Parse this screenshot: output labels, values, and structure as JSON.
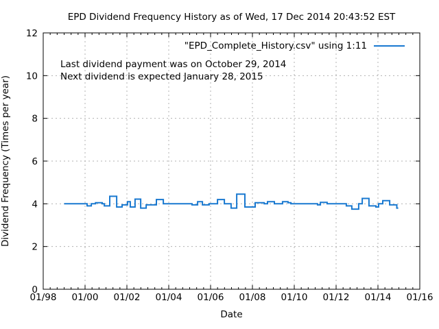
{
  "window": {
    "background": "#ffffff"
  },
  "title": "EPD Dividend Frequency History as of Wed, 17 Dec 2014 20:43:52 EST",
  "legend": {
    "label": "\"EPD_Complete_History.csv\" using 1:11",
    "line_color": "#1878d0"
  },
  "annotations": {
    "line1": "Last dividend payment was on October 29, 2014",
    "line2": "Next dividend is expected January 28, 2015"
  },
  "colors": {
    "background": "#ffffff",
    "text": "#000000",
    "border": "#000000",
    "grid": "#b0b0b0",
    "series": "#1878d0"
  },
  "chart_data": {
    "type": "line",
    "title": "EPD Dividend Frequency History as of Wed, 17 Dec 2014 20:43:52 EST",
    "xlabel": "Date",
    "ylabel": "Dividend Frequency (Times per year)",
    "xlim": [
      1998,
      2016
    ],
    "ylim": [
      0,
      12
    ],
    "grid": true,
    "legend_position": "top-right-inside",
    "x_ticks": [
      {
        "v": 1998,
        "label": "01/98"
      },
      {
        "v": 2000,
        "label": "01/00"
      },
      {
        "v": 2002,
        "label": "01/02"
      },
      {
        "v": 2004,
        "label": "01/04"
      },
      {
        "v": 2006,
        "label": "01/06"
      },
      {
        "v": 2008,
        "label": "01/08"
      },
      {
        "v": 2010,
        "label": "01/10"
      },
      {
        "v": 2012,
        "label": "01/12"
      },
      {
        "v": 2014,
        "label": "01/14"
      },
      {
        "v": 2016,
        "label": "01/16"
      }
    ],
    "x_minor_per_major": 6,
    "y_ticks": [
      {
        "v": 0,
        "label": "0"
      },
      {
        "v": 2,
        "label": "2"
      },
      {
        "v": 4,
        "label": "4"
      },
      {
        "v": 6,
        "label": "6"
      },
      {
        "v": 8,
        "label": "8"
      },
      {
        "v": 10,
        "label": "10"
      },
      {
        "v": 12,
        "label": "12"
      }
    ],
    "series": [
      {
        "name": "\"EPD_Complete_History.csv\" using 1:11",
        "color": "#1878d0",
        "steps": [
          [
            1999.0,
            2000.1,
            4.0
          ],
          [
            2000.1,
            2000.3,
            3.9
          ],
          [
            2000.3,
            2000.5,
            4.0
          ],
          [
            2000.5,
            2000.82,
            4.05
          ],
          [
            2000.82,
            2000.92,
            4.0
          ],
          [
            2000.92,
            2001.18,
            3.9
          ],
          [
            2001.18,
            2001.51,
            4.35
          ],
          [
            2001.51,
            2001.77,
            3.85
          ],
          [
            2001.77,
            2002.03,
            3.95
          ],
          [
            2002.03,
            2002.16,
            4.1
          ],
          [
            2002.16,
            2002.39,
            3.85
          ],
          [
            2002.39,
            2002.66,
            4.22
          ],
          [
            2002.66,
            2002.92,
            3.8
          ],
          [
            2002.92,
            2003.41,
            3.95
          ],
          [
            2003.41,
            2003.74,
            4.2
          ],
          [
            2003.74,
            2005.11,
            4.0
          ],
          [
            2005.11,
            2005.38,
            3.95
          ],
          [
            2005.38,
            2005.61,
            4.1
          ],
          [
            2005.61,
            2005.93,
            3.95
          ],
          [
            2005.93,
            2006.33,
            4.0
          ],
          [
            2006.33,
            2006.66,
            4.2
          ],
          [
            2006.66,
            2006.98,
            4.0
          ],
          [
            2006.98,
            2007.25,
            3.8
          ],
          [
            2007.25,
            2007.64,
            4.45
          ],
          [
            2007.64,
            2008.13,
            3.85
          ],
          [
            2008.13,
            2008.56,
            4.05
          ],
          [
            2008.56,
            2008.72,
            4.0
          ],
          [
            2008.72,
            2009.05,
            4.1
          ],
          [
            2009.05,
            2009.44,
            4.0
          ],
          [
            2009.44,
            2009.7,
            4.1
          ],
          [
            2009.7,
            2009.84,
            4.05
          ],
          [
            2009.84,
            2011.11,
            4.0
          ],
          [
            2011.11,
            2011.25,
            3.95
          ],
          [
            2011.25,
            2011.57,
            4.07
          ],
          [
            2011.57,
            2012.49,
            4.0
          ],
          [
            2012.49,
            2012.75,
            3.9
          ],
          [
            2012.75,
            2013.08,
            3.75
          ],
          [
            2013.08,
            2013.25,
            4.0
          ],
          [
            2013.25,
            2013.57,
            4.25
          ],
          [
            2013.57,
            2013.9,
            3.9
          ],
          [
            2013.9,
            2014.03,
            3.85
          ],
          [
            2014.03,
            2014.23,
            4.0
          ],
          [
            2014.23,
            2014.56,
            4.15
          ],
          [
            2014.56,
            2014.9,
            3.95
          ],
          [
            2014.9,
            2014.97,
            3.8
          ]
        ]
      }
    ]
  }
}
